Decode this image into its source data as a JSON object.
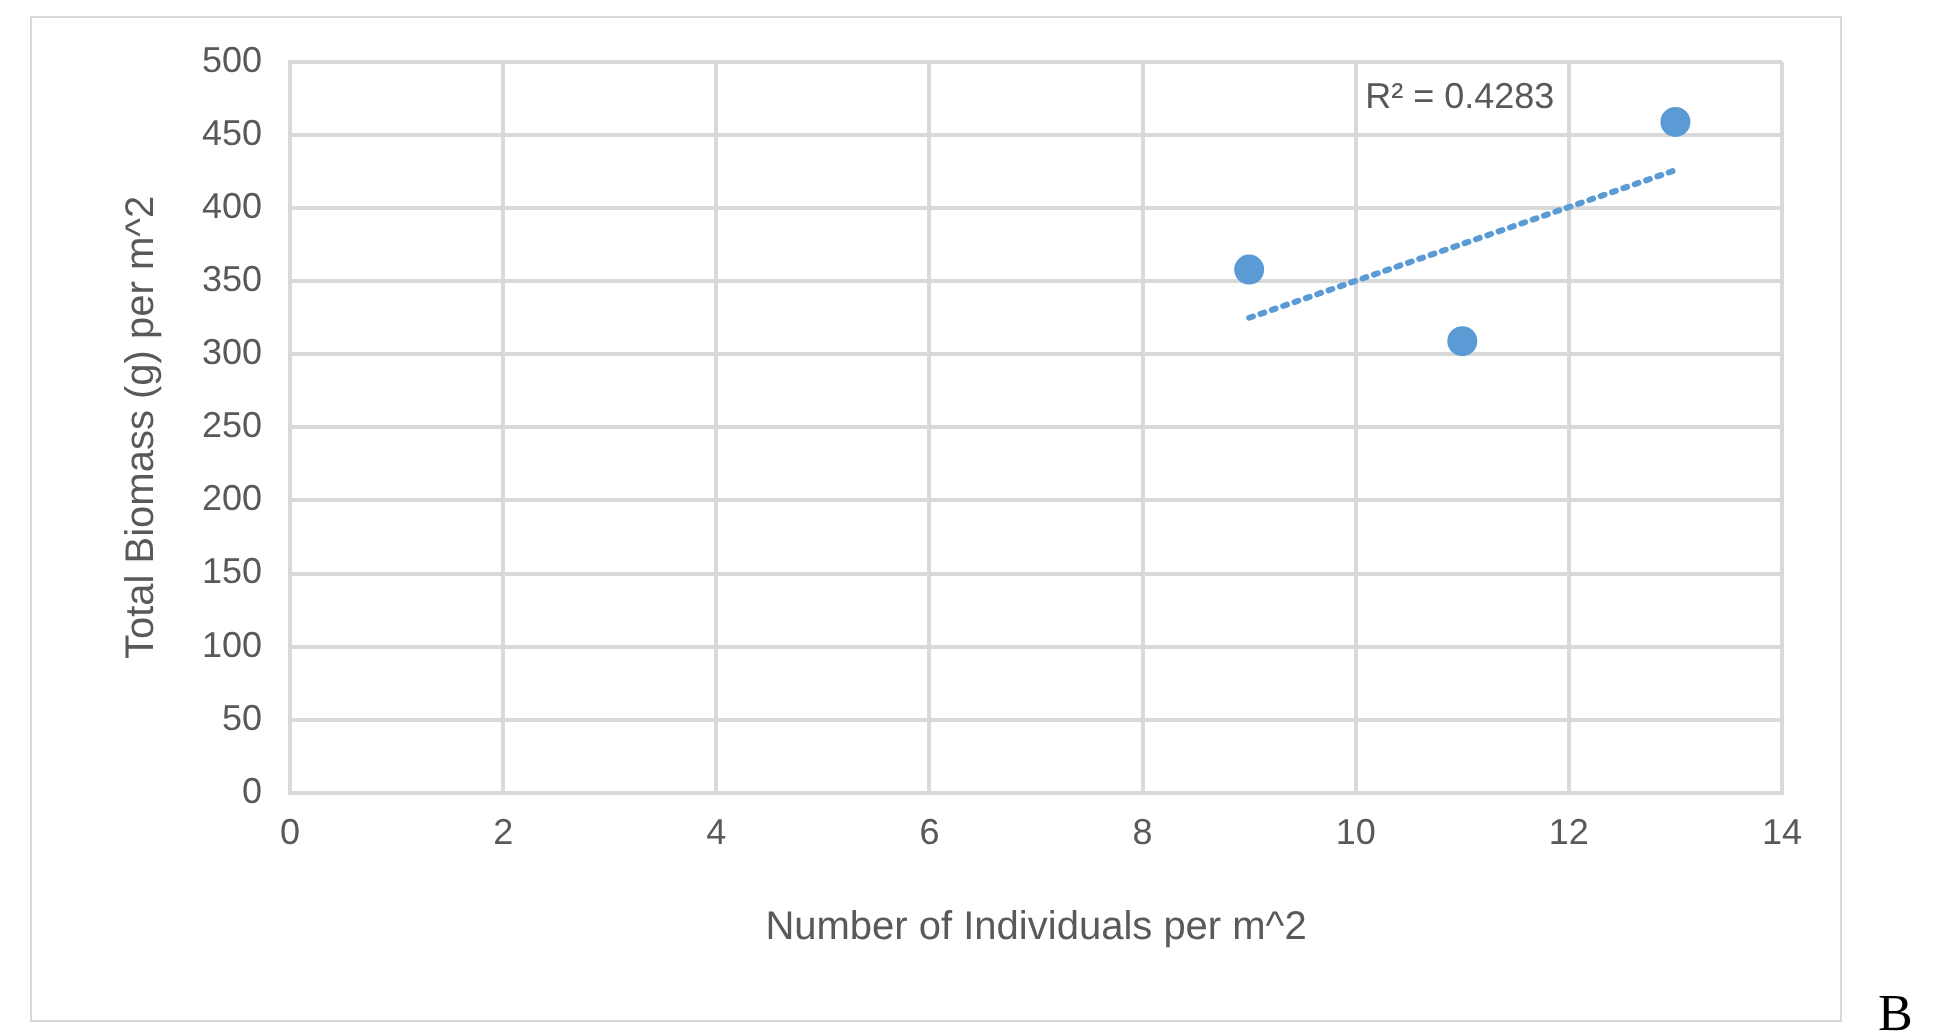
{
  "chart_data": {
    "type": "scatter",
    "xlabel": "Number of Individuals per m^2",
    "ylabel": "Total Biomass (g) per m^2",
    "series": [
      {
        "color": "#5b9bd5",
        "x": [
          9,
          11,
          13
        ],
        "values": [
          358,
          309,
          459
        ],
        "marker": "circle"
      },
      {
        "type": "line",
        "color": "#5b9bd5",
        "x": [
          9,
          13
        ],
        "values": [
          325,
          426
        ],
        "marker": "none",
        "line_style": "dotted"
      }
    ],
    "xlim": [
      0,
      14
    ],
    "xticks": [
      0,
      2,
      4,
      6,
      8,
      10,
      12,
      14
    ],
    "ylim": [
      0,
      500
    ],
    "yticks": [
      0,
      50,
      100,
      150,
      200,
      250,
      300,
      350,
      400,
      450,
      500
    ],
    "grid": true,
    "legend": false,
    "annotations": [
      "R² = 0.4283",
      "B"
    ]
  }
}
